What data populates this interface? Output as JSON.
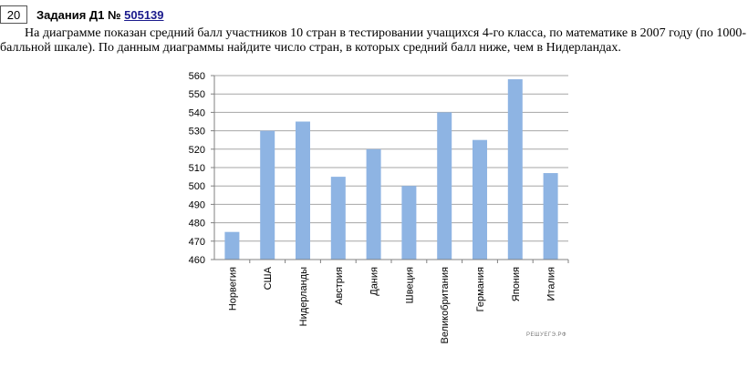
{
  "header": {
    "number": "20",
    "title_prefix": "Задания Д1 №",
    "task_id": "505139"
  },
  "problem_text": "На диаграмме показан средний балл участников 10 стран в тестировании учащихся 4-го класса, по математике в 2007 году (по 1000-балльной шкале). По данным диаграммы найдите число стран, в которых средний балл ниже, чем в Нидерландах.",
  "watermark": "РЕШУЕГЭ.РФ",
  "colors": {
    "bar": "#8eb4e3",
    "grid": "#a6a6a6"
  },
  "chart_data": {
    "type": "bar",
    "categories": [
      "Норвегия",
      "США",
      "Нидерланды",
      "Австрия",
      "Дания",
      "Швеция",
      "Великобритания",
      "Германия",
      "Япония",
      "Италия"
    ],
    "values": [
      475,
      530,
      535,
      505,
      520,
      500,
      540,
      525,
      558,
      507
    ],
    "ylim": [
      460,
      560
    ],
    "yticks": [
      460,
      470,
      480,
      490,
      500,
      510,
      520,
      530,
      540,
      550,
      560
    ],
    "grid": true,
    "legend": "none"
  }
}
